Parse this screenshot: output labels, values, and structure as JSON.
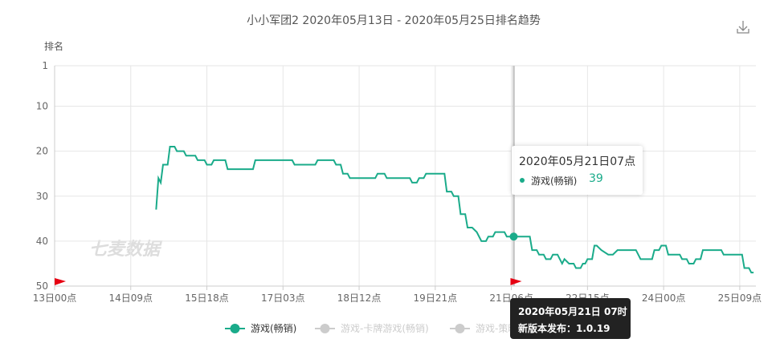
{
  "chart_data": {
    "type": "line",
    "title": "小小军团2 2020年05月13日 - 2020年05月25日排名趋势",
    "y_label": "排名",
    "watermark": "七麦数据",
    "y_reversed": true,
    "ylim": [
      1,
      50
    ],
    "yticks": [
      1,
      10,
      20,
      30,
      40,
      50
    ],
    "xlim": [
      "13日00点",
      "25日16点"
    ],
    "xticks": [
      "13日00点",
      "14日09点",
      "15日18点",
      "17日03点",
      "18日12点",
      "19日21点",
      "21日06点",
      "22日15点",
      "24日00点",
      "25日09点"
    ],
    "grid": true,
    "x": [
      "14日20点",
      "14日21点",
      "14日22点",
      "14日23点",
      "15日01点",
      "15日02点",
      "15日04点",
      "15日05点",
      "15日08点",
      "15日09点",
      "15日13点",
      "15日14点",
      "15日17点",
      "15日18点",
      "15日20点",
      "15日21点",
      "16日02点",
      "16日03点",
      "16日14点",
      "16日15点",
      "17日07点",
      "17日08点",
      "17日17点",
      "17日18点",
      "18日01点",
      "18日02点",
      "18日04点",
      "18日05点",
      "18日07点",
      "18日08点",
      "18日19点",
      "18日20点",
      "18日23点",
      "19日00点",
      "19日10点",
      "19日11点",
      "19日13点",
      "19日14点",
      "19日16点",
      "19日17点",
      "20日01点",
      "20日02点",
      "20日04点",
      "20日05点",
      "20日07点",
      "20日08点",
      "20日10点",
      "20日11点",
      "20日13点",
      "20日15点",
      "20日17点",
      "20日19点",
      "20日20点",
      "20日22点",
      "20日23点",
      "21日03点",
      "21日04点",
      "21日07点",
      "21日14点",
      "21日15点",
      "21日17点",
      "21日18点",
      "21日20点",
      "21日21点",
      "21日23点",
      "22日00点",
      "22日02点",
      "22日04点",
      "22日05点",
      "22日07点",
      "22日09点",
      "22日10点",
      "22日12点",
      "22日13点",
      "22日14点",
      "22日15点",
      "22日17点",
      "22日18点",
      "22日19点",
      "22日21点",
      "23日00点",
      "23日02点",
      "23日04点",
      "23日12点",
      "23日13点",
      "23日14点",
      "23日19点",
      "23日20点",
      "23日22点",
      "23日23点",
      "24日01点",
      "24日02点",
      "24日07点",
      "24日08点",
      "24日10点",
      "24日11点",
      "24日13点",
      "24日14点",
      "24日16点",
      "24日17点",
      "25日01点",
      "25日02点",
      "25日05点",
      "25日08点",
      "25日10点",
      "25日11点",
      "25日13点",
      "25日14点",
      "25日15点"
    ],
    "series": [
      {
        "name": "游戏(畅销)",
        "color": "#1aab8a",
        "values": [
          33,
          26,
          27,
          23,
          23,
          19,
          19,
          20,
          20,
          21,
          21,
          22,
          22,
          23,
          23,
          22,
          22,
          24,
          24,
          22,
          22,
          23,
          23,
          22,
          22,
          23,
          23,
          25,
          25,
          26,
          26,
          25,
          25,
          26,
          26,
          27,
          27,
          26,
          26,
          25,
          25,
          29,
          29,
          30,
          30,
          34,
          34,
          37,
          37,
          38,
          40,
          40,
          39,
          39,
          38,
          38,
          39,
          39,
          39,
          42,
          42,
          43,
          43,
          44,
          44,
          43,
          43,
          45,
          44,
          45,
          45,
          46,
          46,
          45,
          45,
          44,
          44,
          41,
          41,
          42,
          43,
          43,
          42,
          42,
          43,
          44,
          44,
          42,
          42,
          41,
          41,
          43,
          43,
          44,
          44,
          45,
          45,
          44,
          44,
          42,
          42,
          43,
          43,
          43,
          43,
          46,
          46,
          47,
          47
        ]
      },
      {
        "name": "游戏-卡牌游戏(畅销)",
        "color": "#cccccc",
        "visible": false
      },
      {
        "name": "游戏-策略游戏(畅销)",
        "color": "#cccccc",
        "visible": false
      }
    ],
    "tooltip": {
      "title": "2020年05月21日07点"
    },
    "release": {
      "title": "2020年05月21日 07时",
      "text": "新版本发布：1.0.19"
    }
  }
}
